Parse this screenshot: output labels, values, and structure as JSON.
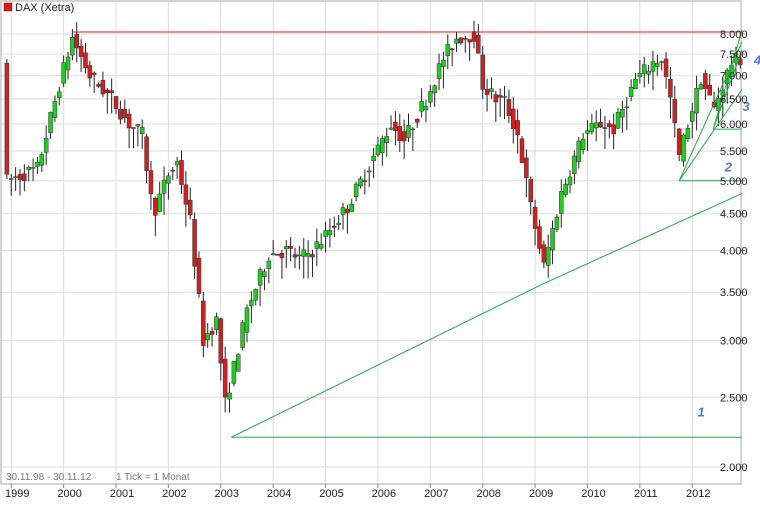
{
  "legend": {
    "label": "DAX (Xetra)",
    "color": "#cc2222"
  },
  "footer": {
    "range": "30.11.98 - 30.11.12",
    "tick": "1 Tick = 1 Monat"
  },
  "colors": {
    "up": "#22cc22",
    "down": "#cc2222",
    "resistance": "#cc2222",
    "trend": "#22aa44",
    "annotation": "#5577cc",
    "grid": "#dddddd"
  },
  "chart_data": {
    "type": "candlestick",
    "title": "",
    "y_scale": "log",
    "ylim": [
      2000,
      8200
    ],
    "xlim": [
      1998.9,
      2012.95
    ],
    "y_ticks": [
      {
        "v": 2000,
        "label": "2.000"
      },
      {
        "v": 2500,
        "label": "2.500"
      },
      {
        "v": 3000,
        "label": "3.000"
      },
      {
        "v": 3500,
        "label": "3.500"
      },
      {
        "v": 4000,
        "label": "4.000"
      },
      {
        "v": 4500,
        "label": "4.500"
      },
      {
        "v": 5000,
        "label": "5.000"
      },
      {
        "v": 5500,
        "label": "5.500"
      },
      {
        "v": 6000,
        "label": "6.000"
      },
      {
        "v": 6500,
        "label": "6.500"
      },
      {
        "v": 7000,
        "label": "7.000"
      },
      {
        "v": 7500,
        "label": "7.500"
      },
      {
        "v": 8000,
        "label": "8.000"
      }
    ],
    "x_ticks": [
      {
        "v": 1999,
        "label": "1999"
      },
      {
        "v": 2000,
        "label": "2000"
      },
      {
        "v": 2001,
        "label": "2001"
      },
      {
        "v": 2002,
        "label": "2002"
      },
      {
        "v": 2003,
        "label": "2003"
      },
      {
        "v": 2004,
        "label": "2004"
      },
      {
        "v": 2005,
        "label": "2005"
      },
      {
        "v": 2006,
        "label": "2006"
      },
      {
        "v": 2007,
        "label": "2007"
      },
      {
        "v": 2008,
        "label": "2008"
      },
      {
        "v": 2009,
        "label": "2009"
      },
      {
        "v": 2010,
        "label": "2010"
      },
      {
        "v": 2011,
        "label": "2011"
      },
      {
        "v": 2012,
        "label": "2012"
      }
    ],
    "anchors": [
      {
        "t": 1998.917,
        "v": 5000
      },
      {
        "t": 1999.5,
        "v": 5200
      },
      {
        "t": 1999.917,
        "v": 6800
      },
      {
        "t": 2000.167,
        "v": 7900
      },
      {
        "t": 2000.5,
        "v": 7000
      },
      {
        "t": 2000.917,
        "v": 6500
      },
      {
        "t": 2001.25,
        "v": 6000
      },
      {
        "t": 2001.5,
        "v": 5800
      },
      {
        "t": 2001.708,
        "v": 4500
      },
      {
        "t": 2002.0,
        "v": 5100
      },
      {
        "t": 2002.167,
        "v": 5300
      },
      {
        "t": 2002.417,
        "v": 4400
      },
      {
        "t": 2002.667,
        "v": 3000
      },
      {
        "t": 2002.917,
        "v": 3200
      },
      {
        "t": 2003.083,
        "v": 2450
      },
      {
        "t": 2003.25,
        "v": 2750
      },
      {
        "t": 2003.5,
        "v": 3300
      },
      {
        "t": 2003.917,
        "v": 3950
      },
      {
        "t": 2004.25,
        "v": 4000
      },
      {
        "t": 2004.5,
        "v": 3900
      },
      {
        "t": 2004.75,
        "v": 4000
      },
      {
        "t": 2005.0,
        "v": 4200
      },
      {
        "t": 2005.417,
        "v": 4600
      },
      {
        "t": 2005.917,
        "v": 5400
      },
      {
        "t": 2006.25,
        "v": 6000
      },
      {
        "t": 2006.5,
        "v": 5700
      },
      {
        "t": 2006.917,
        "v": 6500
      },
      {
        "t": 2007.25,
        "v": 7400
      },
      {
        "t": 2007.5,
        "v": 7900
      },
      {
        "t": 2007.833,
        "v": 8000
      },
      {
        "t": 2008.0,
        "v": 6800
      },
      {
        "t": 2008.25,
        "v": 6500
      },
      {
        "t": 2008.417,
        "v": 6450
      },
      {
        "t": 2008.667,
        "v": 5800
      },
      {
        "t": 2008.917,
        "v": 4600
      },
      {
        "t": 2009.167,
        "v": 3800
      },
      {
        "t": 2009.5,
        "v": 4800
      },
      {
        "t": 2009.917,
        "v": 5800
      },
      {
        "t": 2010.25,
        "v": 6000
      },
      {
        "t": 2010.5,
        "v": 5900
      },
      {
        "t": 2010.917,
        "v": 6900
      },
      {
        "t": 2011.25,
        "v": 7300
      },
      {
        "t": 2011.417,
        "v": 7400
      },
      {
        "t": 2011.583,
        "v": 6500
      },
      {
        "t": 2011.75,
        "v": 5400
      },
      {
        "t": 2011.917,
        "v": 6000
      },
      {
        "t": 2012.167,
        "v": 6950
      },
      {
        "t": 2012.417,
        "v": 6300
      },
      {
        "t": 2012.583,
        "v": 6800
      },
      {
        "t": 2012.75,
        "v": 7300
      },
      {
        "t": 2012.917,
        "v": 7400
      }
    ],
    "lines": [
      {
        "kind": "resistance",
        "t1": 2000.167,
        "v1": 8050,
        "t2": 2012.95,
        "v2": 8050
      },
      {
        "kind": "trend",
        "name": "1",
        "t1": 2003.2,
        "v1": 2200,
        "t2": 2012.95,
        "v2": 2200
      },
      {
        "kind": "trend",
        "t1": 2003.2,
        "v1": 2200,
        "t2": 2009.17,
        "v2": 3600
      },
      {
        "kind": "trend",
        "t1": 2009.17,
        "v1": 3600,
        "t2": 2012.95,
        "v2": 4800
      },
      {
        "kind": "trend",
        "t1": 2011.75,
        "v1": 5000,
        "t2": 2012.95,
        "v2": 5000
      },
      {
        "kind": "trend",
        "t1": 2011.75,
        "v1": 5000,
        "t2": 2012.95,
        "v2": 6700
      },
      {
        "kind": "trend",
        "t1": 2011.75,
        "v1": 5000,
        "t2": 2012.95,
        "v2": 7800
      },
      {
        "kind": "trend",
        "t1": 2012.4,
        "v1": 5900,
        "t2": 2012.95,
        "v2": 5900
      },
      {
        "kind": "trend",
        "t1": 2012.4,
        "v1": 5900,
        "t2": 2012.95,
        "v2": 7600
      },
      {
        "kind": "trend",
        "t1": 2012.4,
        "v1": 5900,
        "t2": 2012.95,
        "v2": 8100
      }
    ],
    "annotations": [
      {
        "label": "1",
        "t": 2012.1,
        "v": 2350
      },
      {
        "label": "2",
        "t": 2012.62,
        "v": 5150
      },
      {
        "label": "3",
        "t": 2012.96,
        "v": 6250
      },
      {
        "label": "4",
        "t": 2013.18,
        "v": 7250
      }
    ]
  }
}
